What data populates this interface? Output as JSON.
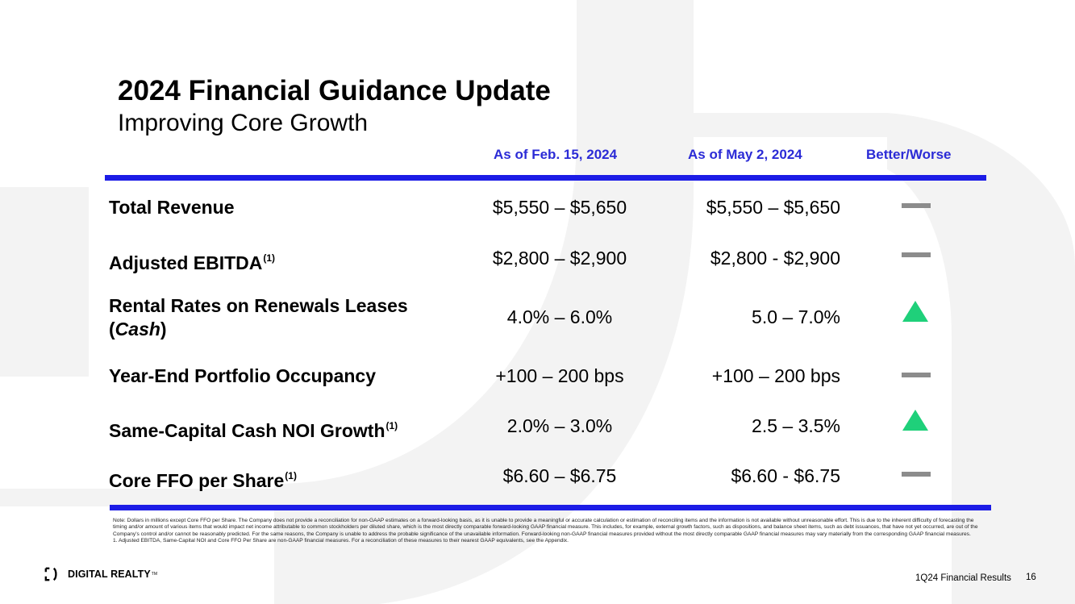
{
  "slide": {
    "title": "2024 Financial Guidance Update",
    "subtitle": "Improving Core Growth"
  },
  "columns": {
    "feb": "As of Feb. 15, 2024",
    "may": "As of May 2, 2024",
    "trend": "Better/Worse"
  },
  "rows": [
    {
      "label": "Total Revenue",
      "note": "",
      "feb": "$5,550 – $5,650",
      "may": "$5,550 – $5,650",
      "trend": "unchanged"
    },
    {
      "label": "Adjusted EBITDA",
      "note": "(1)",
      "feb": "$2,800 – $2,900",
      "may": "$2,800 - $2,900",
      "trend": "unchanged"
    },
    {
      "label_line1": "Rental Rates on Renewals Leases",
      "label_open": "(",
      "label_italic": "Cash",
      "label_close": ")",
      "feb": "4.0% – 6.0%",
      "may": "5.0 – 7.0%",
      "trend": "better"
    },
    {
      "label": "Year-End Portfolio Occupancy",
      "note": "",
      "feb": "+100 – 200 bps",
      "may": "+100 – 200 bps",
      "trend": "unchanged"
    },
    {
      "label": "Same-Capital Cash NOI Growth",
      "note": "(1)",
      "feb": "2.0% – 3.0%",
      "may": "2.5 – 3.5%",
      "trend": "better"
    },
    {
      "label": "Core FFO per Share",
      "note": "(1)",
      "feb": "$6.60 – $6.75",
      "may": "$6.60 - $6.75",
      "trend": "unchanged"
    }
  ],
  "footnotes": {
    "note": "Note: Dollars in millions except Core FFO per Share. The Company does not provide a reconciliation for non-GAAP estimates on a forward-looking basis, as it is unable to provide a meaningful or accurate calculation or estimation of reconciling items and the information is not available without unreasonable effort. This is due to the inherent difficulty of forecasting the timing and/or amount of various items that would impact net income attributable to common stockholders per diluted share, which is the most directly comparable forward-looking GAAP financial measure. This includes, for example, external growth factors, such as dispositions, and balance sheet items, such as debt issuances, that have not yet occurred, are out of the Company's control and/or cannot be reasonably predicted. For the same reasons, the Company is unable to address the probable significance of the unavailable information. Forward-looking non-GAAP financial measures provided without the most directly comparable GAAP financial measures may vary materially from the corresponding GAAP financial measures.",
    "one": "1. Adjusted EBITDA, Same-Capital NOI and Core FFO Per Share are non-GAAP financial measures. For a reconciliation of these measures to their nearest GAAP equivalents, see the Appendix."
  },
  "footer": {
    "logo_text": "DIGITAL REALTY",
    "logo_mark": "TM",
    "report": "1Q24 Financial Results",
    "page": "16"
  },
  "colors": {
    "accent_blue": "#1c1ce6",
    "header_blue": "#2b2bd6",
    "better_green": "#1fd07a",
    "unchanged_gray": "#8c8c8c"
  }
}
